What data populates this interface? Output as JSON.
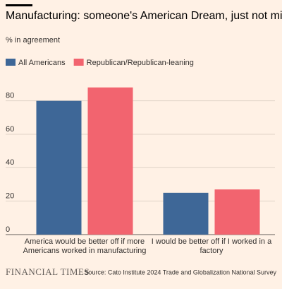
{
  "chart_data": {
    "type": "bar",
    "title": "Manufacturing: someone's American Dream, just not mine",
    "subtitle": "% in agreement",
    "categories": [
      "America would be better off if more Americans worked in manufacturing",
      "I would be better off if I worked in a factory"
    ],
    "series": [
      {
        "name": "All Americans",
        "color": "#3e6797",
        "values": [
          80,
          25
        ]
      },
      {
        "name": "Republican/Republican-leaning",
        "color": "#f2646f",
        "values": [
          88,
          27
        ]
      }
    ],
    "ylim": [
      0,
      90
    ],
    "yticks": [
      0,
      20,
      40,
      60,
      80
    ],
    "grid": true,
    "legend": "top-left",
    "footer": {
      "brand": "FINANCIAL TIMES",
      "source": "Source: Cato Institute 2024 Trade and Globalization National Survey"
    }
  }
}
